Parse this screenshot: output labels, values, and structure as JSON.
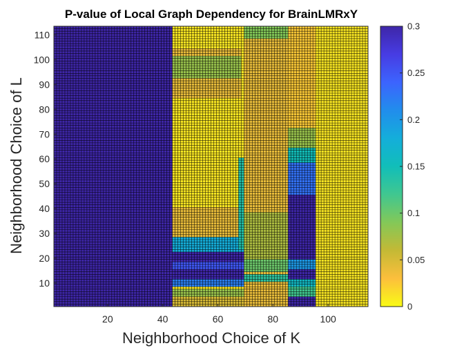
{
  "chart_data": {
    "type": "heatmap",
    "title": "P-value of Local Graph Dependency for BrainLMRxY",
    "xlabel": "Neighborhood Choice of K",
    "ylabel": "Neighborhood Choice of L",
    "xlim": [
      1,
      114
    ],
    "ylim": [
      1,
      113
    ],
    "x_ticks": [
      20,
      40,
      60,
      80,
      100
    ],
    "y_ticks": [
      10,
      20,
      30,
      40,
      50,
      60,
      70,
      80,
      90,
      100,
      110
    ],
    "colorbar": {
      "range": [
        0,
        0.3
      ],
      "ticks": [
        0,
        0.05,
        0.1,
        0.15,
        0.2,
        0.25,
        0.3
      ],
      "tick_labels": [
        "0",
        "0.05",
        "0.1",
        "0.15",
        "0.2",
        "0.25",
        "0.3"
      ],
      "colormap": "parula"
    },
    "grid": true,
    "regions": [
      {
        "k": [
          1,
          43
        ],
        "l": [
          1,
          113
        ],
        "p": 0.3
      },
      {
        "k": [
          44,
          114
        ],
        "l": [
          1,
          113
        ],
        "p": 0.01
      },
      {
        "k": [
          44,
          68
        ],
        "l": [
          85,
          104
        ],
        "p": 0.04
      },
      {
        "k": [
          44,
          68
        ],
        "l": [
          93,
          101
        ],
        "p": 0.08
      },
      {
        "k": [
          44,
          70
        ],
        "l": [
          29,
          40
        ],
        "p": 0.04
      },
      {
        "k": [
          44,
          69
        ],
        "l": [
          22,
          28
        ],
        "p": 0.18
      },
      {
        "k": [
          44,
          69
        ],
        "l": [
          18,
          22
        ],
        "p": 0.3
      },
      {
        "k": [
          44,
          69
        ],
        "l": [
          15,
          18
        ],
        "p": 0.25
      },
      {
        "k": [
          44,
          69
        ],
        "l": [
          12,
          15
        ],
        "p": 0.3
      },
      {
        "k": [
          44,
          69
        ],
        "l": [
          9,
          11
        ],
        "p": 0.22
      },
      {
        "k": [
          44,
          69
        ],
        "l": [
          4,
          7
        ],
        "p": 0.08
      },
      {
        "k": [
          44,
          69
        ],
        "l": [
          1,
          4
        ],
        "p": 0.05
      },
      {
        "k": [
          68,
          70
        ],
        "l": [
          24,
          60
        ],
        "p": 0.14
      },
      {
        "k": [
          70,
          86
        ],
        "l": [
          1,
          113
        ],
        "p": 0.04
      },
      {
        "k": [
          70,
          86
        ],
        "l": [
          20,
          38
        ],
        "p": 0.07
      },
      {
        "k": [
          70,
          86
        ],
        "l": [
          15,
          19
        ],
        "p": 0.1
      },
      {
        "k": [
          70,
          86
        ],
        "l": [
          11,
          13
        ],
        "p": 0.13
      },
      {
        "k": [
          70,
          86
        ],
        "l": [
          109,
          113
        ],
        "p": 0.09
      },
      {
        "k": [
          86,
          96
        ],
        "l": [
          1,
          113
        ],
        "p": 0.025
      },
      {
        "k": [
          86,
          96
        ],
        "l": [
          60,
          72
        ],
        "p": 0.08
      },
      {
        "k": [
          86,
          96
        ],
        "l": [
          55,
          64
        ],
        "p": 0.15
      },
      {
        "k": [
          86,
          96
        ],
        "l": [
          45,
          58
        ],
        "p": 0.23
      },
      {
        "k": [
          86,
          96
        ],
        "l": [
          12,
          45
        ],
        "p": 0.3
      },
      {
        "k": [
          86,
          96
        ],
        "l": [
          16,
          19
        ],
        "p": 0.2
      },
      {
        "k": [
          86,
          96
        ],
        "l": [
          9,
          11
        ],
        "p": 0.16
      },
      {
        "k": [
          86,
          96
        ],
        "l": [
          5,
          8
        ],
        "p": 0.12
      },
      {
        "k": [
          86,
          96
        ],
        "l": [
          1,
          4
        ],
        "p": 0.3
      },
      {
        "k": [
          96,
          114
        ],
        "l": [
          1,
          113
        ],
        "p": 0.01
      }
    ]
  }
}
